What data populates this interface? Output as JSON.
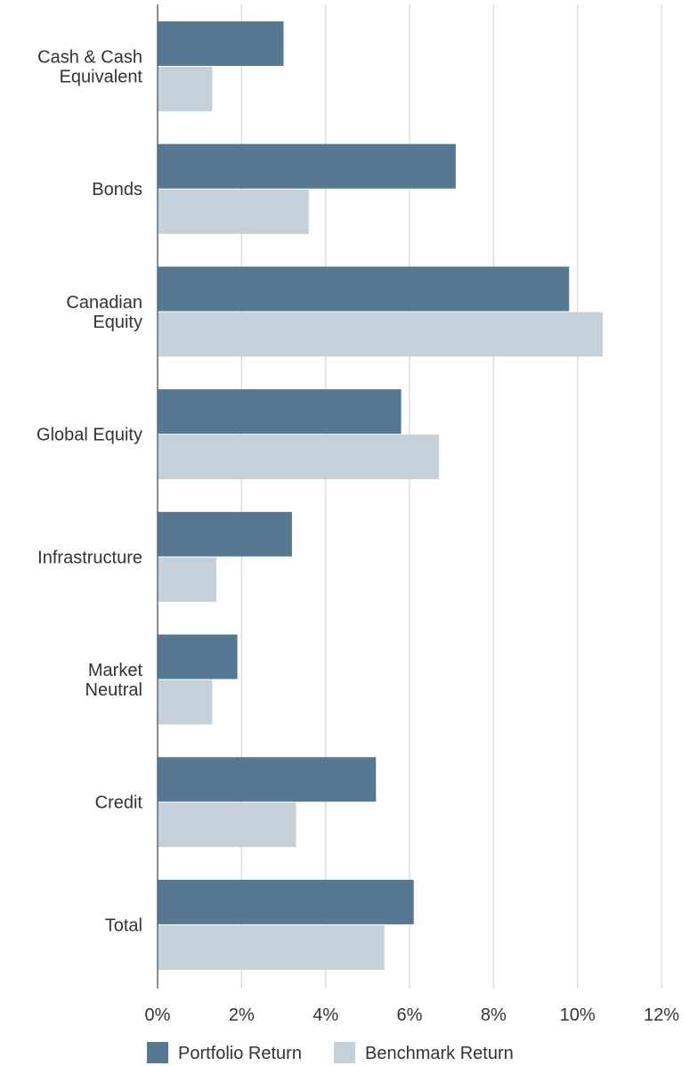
{
  "chart_data": {
    "type": "bar",
    "orientation": "horizontal",
    "categories": [
      [
        "Cash & Cash",
        "Equivalent"
      ],
      [
        "Bonds"
      ],
      [
        "Canadian",
        "Equity"
      ],
      [
        "Global Equity"
      ],
      [
        "Infrastructure"
      ],
      [
        "Market",
        "Neutral"
      ],
      [
        "Credit"
      ],
      [
        "Total"
      ]
    ],
    "series": [
      {
        "name": "Portfolio Return",
        "color": "#557893",
        "values": [
          3.0,
          7.1,
          9.8,
          5.8,
          3.2,
          1.9,
          5.2,
          6.1
        ]
      },
      {
        "name": "Benchmark Return",
        "color": "#c5d1da",
        "values": [
          1.3,
          3.6,
          10.6,
          6.7,
          1.4,
          1.3,
          3.3,
          5.4
        ]
      }
    ],
    "xlim": [
      0,
      12
    ],
    "ticks": [
      0,
      2,
      4,
      6,
      8,
      10,
      12
    ],
    "tick_suffix": "%",
    "grid": true,
    "legend": "bottom"
  }
}
